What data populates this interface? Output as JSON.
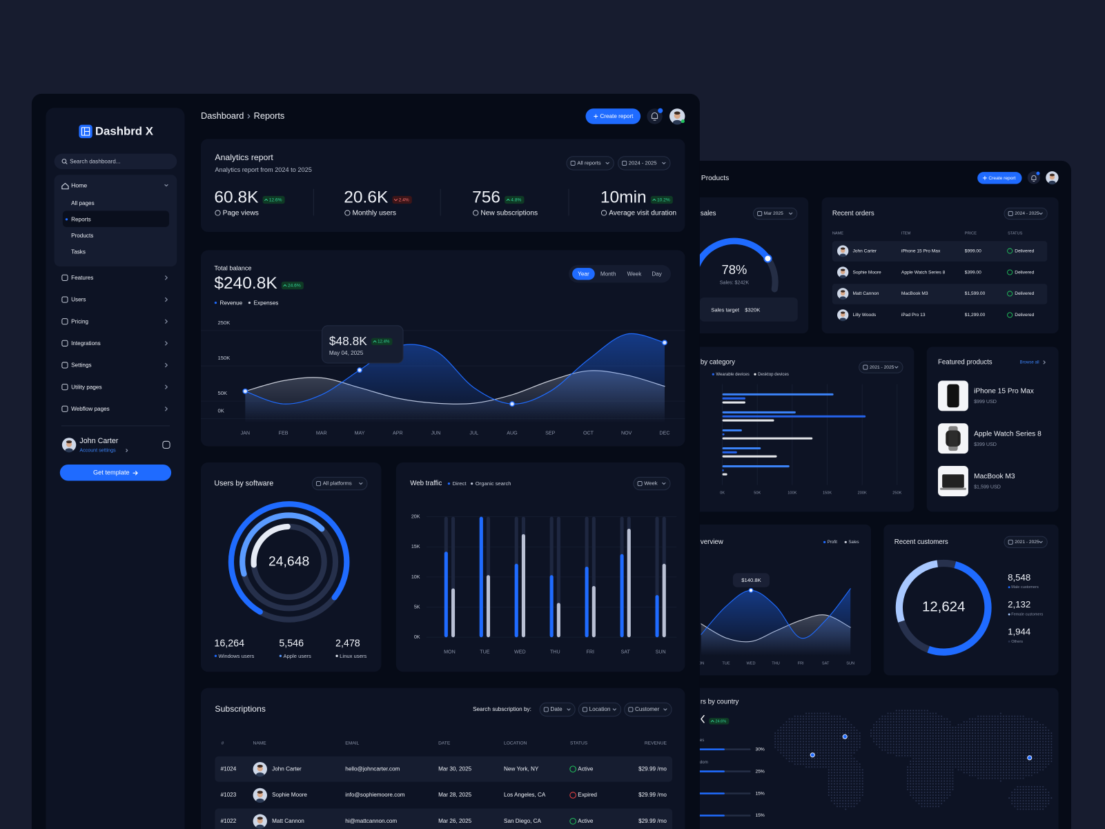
{
  "sidebar": {
    "logo": "Dashbrd X",
    "search": "Search dashboard...",
    "home": "Home",
    "home_links": [
      "All pages",
      "Reports",
      "Products",
      "Tasks"
    ],
    "menu": [
      "Features",
      "Users",
      "Pricing",
      "Integrations",
      "Settings",
      "Utility pages",
      "Webflow pages"
    ],
    "user": {
      "name": "John Carter",
      "link": "Account settings"
    },
    "cta": "Get template"
  },
  "header": {
    "breadcrumb": [
      "Dashboard",
      "Reports"
    ],
    "create": "Create report"
  },
  "analytics": {
    "title": "Analytics report",
    "subtitle": "Analytics report from 2024 to 2025",
    "filters": [
      "All reports",
      "2024 - 2025"
    ],
    "stats": [
      {
        "value": "60.8K",
        "change": "12.6%",
        "trend": "up",
        "label": "Page views"
      },
      {
        "value": "20.6K",
        "change": "2.4%",
        "trend": "down",
        "label": "Monthly users"
      },
      {
        "value": "756",
        "change": "4.8%",
        "trend": "up",
        "label": "New subscriptions"
      },
      {
        "value": "10min",
        "change": "10.2%",
        "trend": "up",
        "label": "Average visit duration"
      }
    ]
  },
  "balance": {
    "title": "Total balance",
    "value": "$240.8K",
    "change": "24.6%",
    "tabs": [
      "Year",
      "Month",
      "Week",
      "Day"
    ],
    "active_tab": 0,
    "tooltip": {
      "value": "$48.8K",
      "change": "12.4%",
      "date": "May 04, 2025"
    },
    "chart": {
      "type": "line",
      "categories": [
        "JAN",
        "FEB",
        "MAR",
        "MAY",
        "APR",
        "JUN",
        "JUL",
        "AUG",
        "SEP",
        "OCT",
        "NOV",
        "DEC"
      ],
      "series": [
        {
          "name": "Revenue",
          "color": "#1f6bff",
          "values": [
            56,
            20,
            46,
            116,
            184,
            170,
            66,
            20,
            56,
            146,
            218,
            194
          ]
        },
        {
          "name": "Expenses",
          "color": "#c9cdd8",
          "values": [
            56,
            86,
            94,
            66,
            36,
            22,
            22,
            46,
            86,
            114,
            102,
            70
          ]
        }
      ],
      "markers": [
        0,
        3,
        7,
        11
      ],
      "ylim": [
        0,
        250
      ],
      "yticks": [
        {
          "value": 0,
          "label": "0K"
        },
        {
          "value": 50,
          "label": "50K"
        },
        {
          "value": 150,
          "label": "150K"
        },
        {
          "value": 250,
          "label": "250K"
        }
      ],
      "grid": true
    }
  },
  "software": {
    "title": "Users by software",
    "filter": "All platforms",
    "total": "24,648",
    "stats": [
      {
        "value": "16,264",
        "label": "Windows users"
      },
      {
        "value": "5,546",
        "label": "Apple users"
      },
      {
        "value": "2,478",
        "label": "Linux users"
      }
    ]
  },
  "traffic": {
    "title": "Web traffic",
    "filter": "Week",
    "chart": {
      "type": "bar",
      "categories": [
        "MON",
        "TUE",
        "WED",
        "THU",
        "FRI",
        "SAT",
        "SUN"
      ],
      "series": [
        {
          "name": "Direct",
          "color": "#1f6bff",
          "values": [
            14.2,
            20,
            12.2,
            10.3,
            11.7,
            13.8,
            7
          ]
        },
        {
          "name": "Organic search",
          "color": "#b9c0d4",
          "values": [
            8.1,
            10.3,
            17.1,
            5.7,
            8.5,
            18,
            12.2
          ]
        }
      ],
      "ylim": [
        0,
        20
      ],
      "yticks": [
        {
          "value": 0,
          "label": "0K"
        },
        {
          "value": 5,
          "label": "5K"
        },
        {
          "value": 10,
          "label": "10K"
        },
        {
          "value": 15,
          "label": "15K"
        },
        {
          "value": 20,
          "label": "20K"
        }
      ],
      "grid": true
    }
  },
  "subscriptions": {
    "title": "Subscriptions",
    "search_label": "Search subscription by:",
    "filters": [
      "Date",
      "Location",
      "Customer"
    ],
    "columns": [
      "#",
      "NAME",
      "EMAIL",
      "DATE",
      "LOCATION",
      "STATUS",
      "REVENUE"
    ],
    "rows": [
      [
        "#1024",
        "John Carter",
        "hello@johncarter.com",
        "Mar 30, 2025",
        "New York, NY",
        "Active",
        "$29.99 /mo"
      ],
      [
        "#1023",
        "Sophie Moore",
        "info@sophiemoore.com",
        "Mar 28, 2025",
        "Los Angeles, CA",
        "Expired",
        "$29.99 /mo"
      ],
      [
        "#1022",
        "Matt Cannon",
        "hi@mattcannon.com",
        "Mar 26, 2025",
        "San Diego, CA",
        "Active",
        "$29.99 /mo"
      ]
    ],
    "status_colors": [
      "#22c55e",
      "#ef4444",
      "#22c55e"
    ]
  },
  "right_panel": {
    "header": {
      "title": "Products",
      "create": "Create report"
    },
    "sales": {
      "title": "sales",
      "filter": "Mar 2025",
      "percent": "78%",
      "subtitle": "Sales: $242K",
      "target_label": "Sales target",
      "target_value": "$320K"
    },
    "orders": {
      "title": "Recent orders",
      "filter": "2024 - 2025",
      "columns": [
        "NAME",
        "ITEM",
        "PRICE",
        "STATUS"
      ],
      "rows": [
        [
          "John Carter",
          "iPhone 15 Pro Max",
          "$999.00",
          "Delivered"
        ],
        [
          "Sophie Moore",
          "Apple Watch Series 8",
          "$399.00",
          "Delivered"
        ],
        [
          "Matt Cannon",
          "MacBook M3",
          "$1,599.00",
          "Delivered"
        ],
        [
          "Lilly Woods",
          "iPad Pro 13",
          "$1,299.00",
          "Delivered"
        ]
      ]
    },
    "category": {
      "title": "by category",
      "filter": "2021 - 2025",
      "chart": {
        "type": "bar",
        "orientation": "horizontal",
        "categories": [
          null,
          null,
          null,
          null,
          null
        ],
        "series": [
          {
            "color": "#3b82f6",
            "values": [
              159,
              105,
              28,
              55,
              96
            ]
          },
          {
            "name": "Wearable devices",
            "color": "#2563eb",
            "values": [
              33,
              205,
              3,
              21,
              2
            ]
          },
          {
            "name": "Desktop devices",
            "color": "#e5e7eb",
            "values": [
              33,
              74,
              129,
              78,
              7
            ]
          }
        ],
        "xlim": [
          0,
          250
        ],
        "xticks": [
          {
            "value": 0,
            "label": "0K"
          },
          {
            "value": 50,
            "label": "50K"
          },
          {
            "value": 100,
            "label": "100K"
          },
          {
            "value": 150,
            "label": "150K"
          },
          {
            "value": 200,
            "label": "200K"
          },
          {
            "value": 250,
            "label": "250K"
          }
        ],
        "grid": true
      }
    },
    "featured": {
      "title": "Featured products",
      "link": "Browse all",
      "items": [
        {
          "name": "iPhone 15 Pro Max",
          "price": "$999 USD"
        },
        {
          "name": "Apple Watch Series 8",
          "price": "$399 USD"
        },
        {
          "name": "MacBook M3",
          "price": "$1,599 USD"
        }
      ]
    },
    "overview": {
      "title": "verview",
      "tooltip": "$140.8K",
      "chart": {
        "type": "line",
        "categories": [
          "ON",
          "TUE",
          "WED",
          "THU",
          "FRI",
          "SAT",
          "SUN"
        ],
        "series": [
          {
            "name": "Profit",
            "color": "#1f6bff",
            "values": [
              20,
              52,
              70,
              52,
              16,
              36,
              72
            ]
          },
          {
            "name": "Sales",
            "color": "#c9cdd8",
            "values": [
              32,
              16,
              12,
              24,
              36,
              42,
              28
            ]
          }
        ],
        "ylim": [
          0,
          100
        ]
      }
    },
    "customers": {
      "title": "Recent customers",
      "filter": "2021 - 2025",
      "total": "12,624",
      "stats": [
        {
          "value": "8,548",
          "label": "Male customers"
        },
        {
          "value": "2,132",
          "label": "Female customers"
        },
        {
          "value": "1,944",
          "label": "Others"
        }
      ]
    },
    "country": {
      "title": "rs by country",
      "change": "24.6%",
      "rows": [
        {
          "label": "es",
          "value": "30%"
        },
        {
          "label": "dom",
          "value": "25%"
        },
        {
          "value": "15%"
        },
        {
          "value": "15%"
        }
      ]
    }
  }
}
